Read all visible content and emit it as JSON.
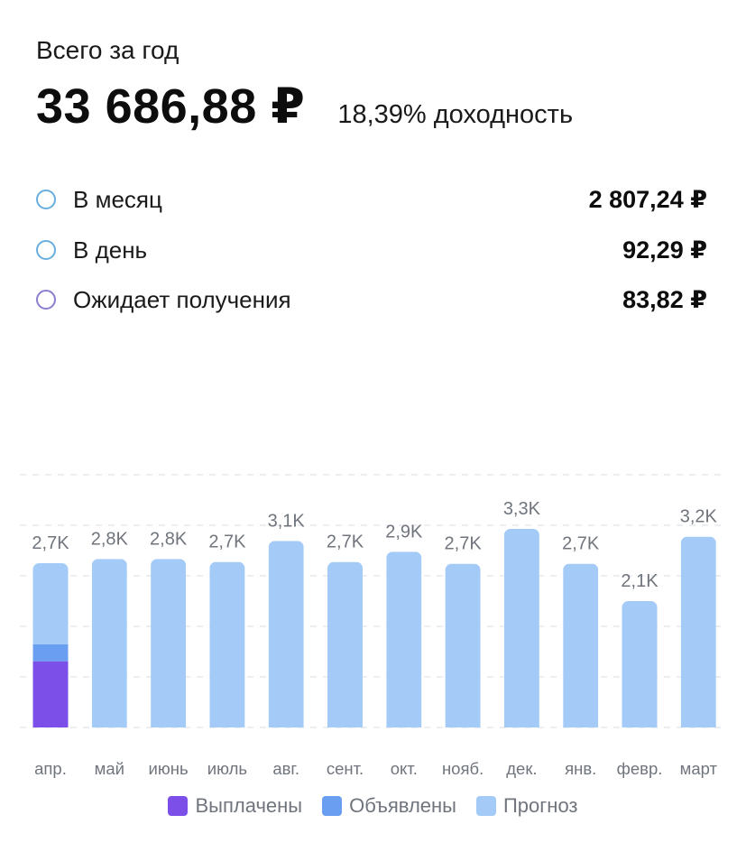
{
  "summary": {
    "label": "Всего за год",
    "total": "33 686,88 ₽",
    "yield": "18,39% доходность"
  },
  "stats": [
    {
      "label": "В месяц",
      "value": "2 807,24 ₽",
      "ring_color": "#6aaee0"
    },
    {
      "label": "В день",
      "value": "92,29 ₽",
      "ring_color": "#6aaee0"
    },
    {
      "label": "Ожидает получения",
      "value": "83,82 ₽",
      "ring_color": "#8b7fd0"
    }
  ],
  "chart_data": {
    "type": "bar",
    "stacked": true,
    "categories": [
      "апр.",
      "май",
      "июнь",
      "июль",
      "авг.",
      "сент.",
      "окт.",
      "нояб.",
      "дек.",
      "янв.",
      "февр.",
      "март"
    ],
    "totals_labels": [
      "2,7K",
      "2,8K",
      "2,8K",
      "2,7K",
      "3,1K",
      "2,7K",
      "2,9K",
      "2,7K",
      "3,3K",
      "2,7K",
      "2,1K",
      "3,2K"
    ],
    "series": [
      {
        "name": "Выплачены",
        "color": "#7b4fe8",
        "values": [
          1100,
          0,
          0,
          0,
          0,
          0,
          0,
          0,
          0,
          0,
          0,
          0
        ]
      },
      {
        "name": "Объявлены",
        "color": "#6a9ef0",
        "values": [
          280,
          0,
          0,
          0,
          0,
          0,
          0,
          0,
          0,
          0,
          0,
          0
        ]
      },
      {
        "name": "Прогноз",
        "color": "#a4cbf7",
        "values": [
          1350,
          2800,
          2800,
          2750,
          3100,
          2750,
          2920,
          2720,
          3300,
          2720,
          2100,
          3170
        ]
      }
    ],
    "ylim": [
      0,
      4200
    ],
    "grid": true,
    "legend_position": "bottom"
  }
}
